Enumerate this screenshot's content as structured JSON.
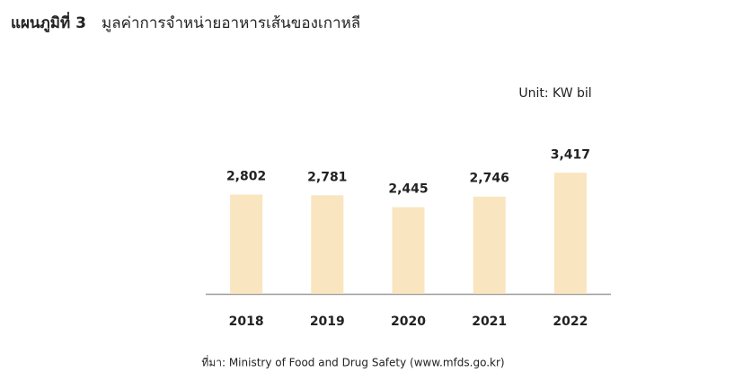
{
  "chart_data": {
    "type": "bar",
    "title_prefix": "แผนภูมิที่ 3",
    "title": "มูลค่าการจำหน่ายอาหารเส้นของเกาหลี",
    "unit": "Unit: KW bil",
    "source": "ที่มา: Ministry of Food and Drug Safety (www.mfds.go.kr)",
    "categories": [
      "2018",
      "2019",
      "2020",
      "2021",
      "2022"
    ],
    "values": [
      2802,
      2781,
      2445,
      2746,
      3417
    ],
    "value_labels": [
      "2,802",
      "2,781",
      "2,445",
      "2,746",
      "3,417"
    ],
    "color": "#f9e5bf",
    "ylim": [
      0,
      7000
    ]
  }
}
